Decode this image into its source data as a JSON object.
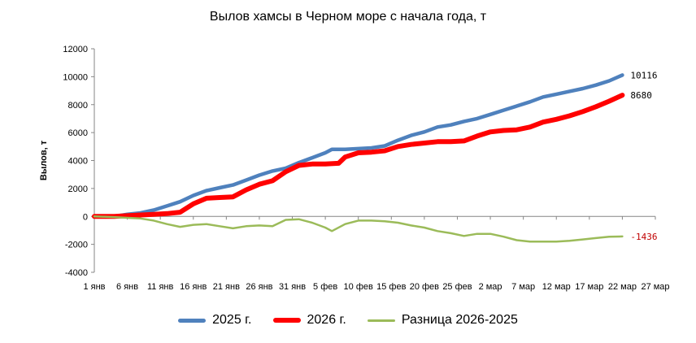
{
  "chart_data": {
    "type": "line",
    "title": "Вылов хамсы в Черном море с начала года, т",
    "ylabel": "Вылов, т",
    "xlabel": "",
    "ylim": [
      -4000,
      12000
    ],
    "yticks": [
      12000,
      10000,
      8000,
      6000,
      4000,
      2000,
      0,
      -2000,
      -4000
    ],
    "x_tick_labels": [
      "1 янв",
      "6 янв",
      "11 янв",
      "16 янв",
      "21 янв",
      "26 янв",
      "31 янв",
      "5 фев",
      "10 фев",
      "15 фев",
      "20 фев",
      "25 фев",
      "2 мар",
      "7 мар",
      "12 мар",
      "17 мар",
      "22 мар",
      "27 мар"
    ],
    "x_domain_days": [
      0,
      85
    ],
    "x_tick_step_days": 5,
    "grid": false,
    "legend_position": "bottom",
    "series": [
      {
        "name": "2025 г.",
        "color": "#4F81BD",
        "end_label": "10116",
        "points": [
          [
            0,
            0
          ],
          [
            3,
            0
          ],
          [
            5,
            150
          ],
          [
            7,
            250
          ],
          [
            9,
            450
          ],
          [
            11,
            750
          ],
          [
            13,
            1050
          ],
          [
            15,
            1500
          ],
          [
            17,
            1850
          ],
          [
            19,
            2050
          ],
          [
            21,
            2250
          ],
          [
            23,
            2600
          ],
          [
            25,
            2950
          ],
          [
            27,
            3250
          ],
          [
            29,
            3450
          ],
          [
            31,
            3850
          ],
          [
            33,
            4200
          ],
          [
            35,
            4550
          ],
          [
            36,
            4800
          ],
          [
            38,
            4800
          ],
          [
            40,
            4850
          ],
          [
            42,
            4900
          ],
          [
            44,
            5050
          ],
          [
            46,
            5450
          ],
          [
            48,
            5800
          ],
          [
            50,
            6050
          ],
          [
            52,
            6400
          ],
          [
            54,
            6550
          ],
          [
            56,
            6800
          ],
          [
            58,
            7000
          ],
          [
            60,
            7300
          ],
          [
            62,
            7600
          ],
          [
            64,
            7900
          ],
          [
            66,
            8200
          ],
          [
            68,
            8550
          ],
          [
            70,
            8750
          ],
          [
            72,
            8950
          ],
          [
            74,
            9150
          ],
          [
            76,
            9400
          ],
          [
            78,
            9700
          ],
          [
            80,
            10116
          ]
        ]
      },
      {
        "name": "2026 г.",
        "color": "#FF0000",
        "end_label": "8680",
        "points": [
          [
            0,
            0
          ],
          [
            3,
            0
          ],
          [
            5,
            50
          ],
          [
            7,
            100
          ],
          [
            9,
            150
          ],
          [
            11,
            200
          ],
          [
            13,
            300
          ],
          [
            15,
            900
          ],
          [
            17,
            1300
          ],
          [
            19,
            1350
          ],
          [
            21,
            1400
          ],
          [
            23,
            1900
          ],
          [
            25,
            2300
          ],
          [
            27,
            2550
          ],
          [
            29,
            3200
          ],
          [
            31,
            3650
          ],
          [
            33,
            3750
          ],
          [
            35,
            3750
          ],
          [
            37,
            3800
          ],
          [
            38,
            4250
          ],
          [
            40,
            4550
          ],
          [
            42,
            4600
          ],
          [
            44,
            4700
          ],
          [
            46,
            5000
          ],
          [
            48,
            5150
          ],
          [
            50,
            5250
          ],
          [
            52,
            5350
          ],
          [
            54,
            5350
          ],
          [
            56,
            5400
          ],
          [
            58,
            5750
          ],
          [
            60,
            6050
          ],
          [
            62,
            6150
          ],
          [
            64,
            6200
          ],
          [
            66,
            6400
          ],
          [
            68,
            6750
          ],
          [
            70,
            6950
          ],
          [
            72,
            7200
          ],
          [
            74,
            7500
          ],
          [
            76,
            7850
          ],
          [
            78,
            8250
          ],
          [
            80,
            8680
          ]
        ]
      },
      {
        "name": "Разница 2026-2025",
        "color": "#9BBB59",
        "end_label": "-1436",
        "points": [
          [
            0,
            0
          ],
          [
            3,
            -50
          ],
          [
            5,
            -100
          ],
          [
            7,
            -150
          ],
          [
            9,
            -300
          ],
          [
            11,
            -550
          ],
          [
            13,
            -750
          ],
          [
            15,
            -600
          ],
          [
            17,
            -550
          ],
          [
            19,
            -700
          ],
          [
            21,
            -850
          ],
          [
            23,
            -700
          ],
          [
            25,
            -650
          ],
          [
            27,
            -700
          ],
          [
            29,
            -250
          ],
          [
            31,
            -200
          ],
          [
            33,
            -450
          ],
          [
            35,
            -800
          ],
          [
            36,
            -1050
          ],
          [
            38,
            -550
          ],
          [
            40,
            -300
          ],
          [
            42,
            -300
          ],
          [
            44,
            -350
          ],
          [
            46,
            -450
          ],
          [
            48,
            -650
          ],
          [
            50,
            -800
          ],
          [
            52,
            -1050
          ],
          [
            54,
            -1200
          ],
          [
            56,
            -1400
          ],
          [
            58,
            -1250
          ],
          [
            60,
            -1250
          ],
          [
            62,
            -1450
          ],
          [
            64,
            -1700
          ],
          [
            66,
            -1800
          ],
          [
            68,
            -1800
          ],
          [
            70,
            -1800
          ],
          [
            72,
            -1750
          ],
          [
            74,
            -1650
          ],
          [
            76,
            -1550
          ],
          [
            78,
            -1450
          ],
          [
            80,
            -1436
          ]
        ]
      }
    ]
  }
}
